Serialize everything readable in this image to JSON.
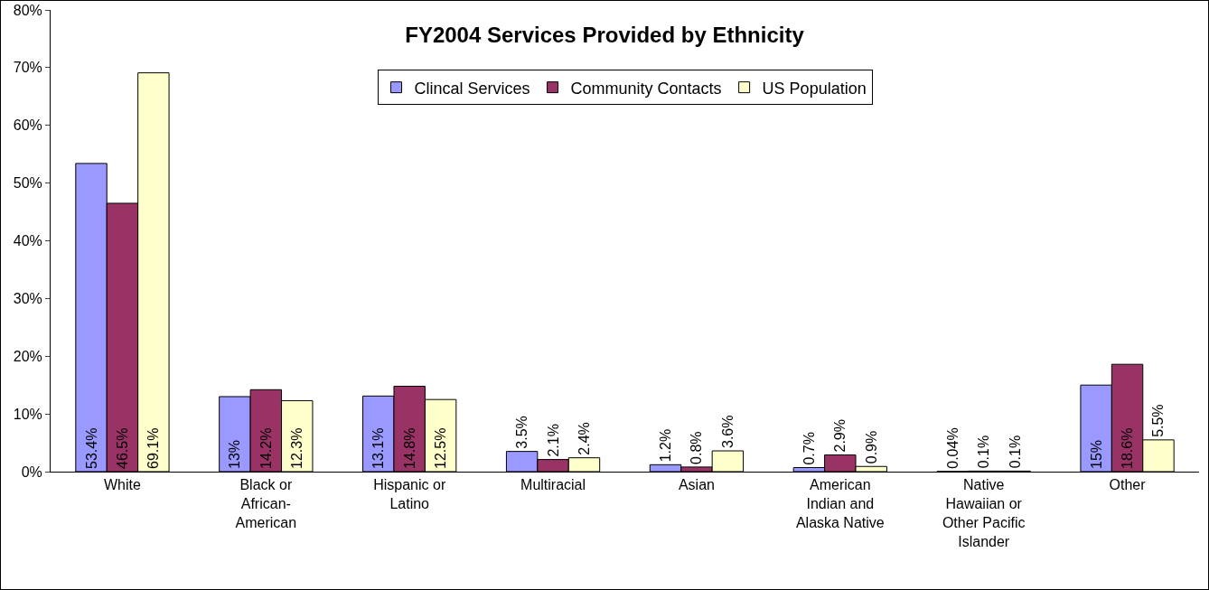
{
  "chart_data": {
    "type": "bar",
    "title": "FY2004 Services Provided by Ethnicity",
    "categories": [
      "White",
      "Black or African-American",
      "Hispanic or Latino",
      "Multiracial",
      "Asian",
      "American Indian and Alaska Native",
      "Native Hawaiian or Other Pacific Islander",
      "Other"
    ],
    "series": [
      {
        "name": "Clincal Services",
        "color": "#9999ff",
        "values": [
          53.4,
          13,
          13.1,
          3.5,
          1.2,
          0.7,
          0.04,
          15
        ],
        "value_labels": [
          "53.4%",
          "13%",
          "13.1%",
          "3.5%",
          "1.2%",
          "0.7%",
          "0.04%",
          "15%"
        ]
      },
      {
        "name": "Community Contacts",
        "color": "#993366",
        "values": [
          46.5,
          14.2,
          14.8,
          2.1,
          0.8,
          2.9,
          0.1,
          18.6
        ],
        "value_labels": [
          "46.5%",
          "14.2%",
          "14.8%",
          "2.1%",
          "0.8%",
          "2.9%",
          "0.1%",
          "18.6%"
        ]
      },
      {
        "name": "US Population",
        "color": "#ffffcc",
        "values": [
          69.1,
          12.3,
          12.5,
          2.4,
          3.6,
          0.9,
          0.1,
          5.5
        ],
        "value_labels": [
          "69.1%",
          "12.3%",
          "12.5%",
          "2.4%",
          "3.6%",
          "0.9%",
          "0.1%",
          "5.5%"
        ]
      }
    ],
    "ylim": [
      0,
      80
    ],
    "yticks": [
      {
        "value": 0,
        "label": "0%"
      },
      {
        "value": 10,
        "label": "10%"
      },
      {
        "value": 20,
        "label": "20%"
      },
      {
        "value": 30,
        "label": "30%"
      },
      {
        "value": 40,
        "label": "40%"
      },
      {
        "value": 50,
        "label": "50%"
      },
      {
        "value": 60,
        "label": "60%"
      },
      {
        "value": 70,
        "label": "70%"
      },
      {
        "value": 80,
        "label": "80%"
      }
    ],
    "grid": false,
    "legend": "top"
  }
}
